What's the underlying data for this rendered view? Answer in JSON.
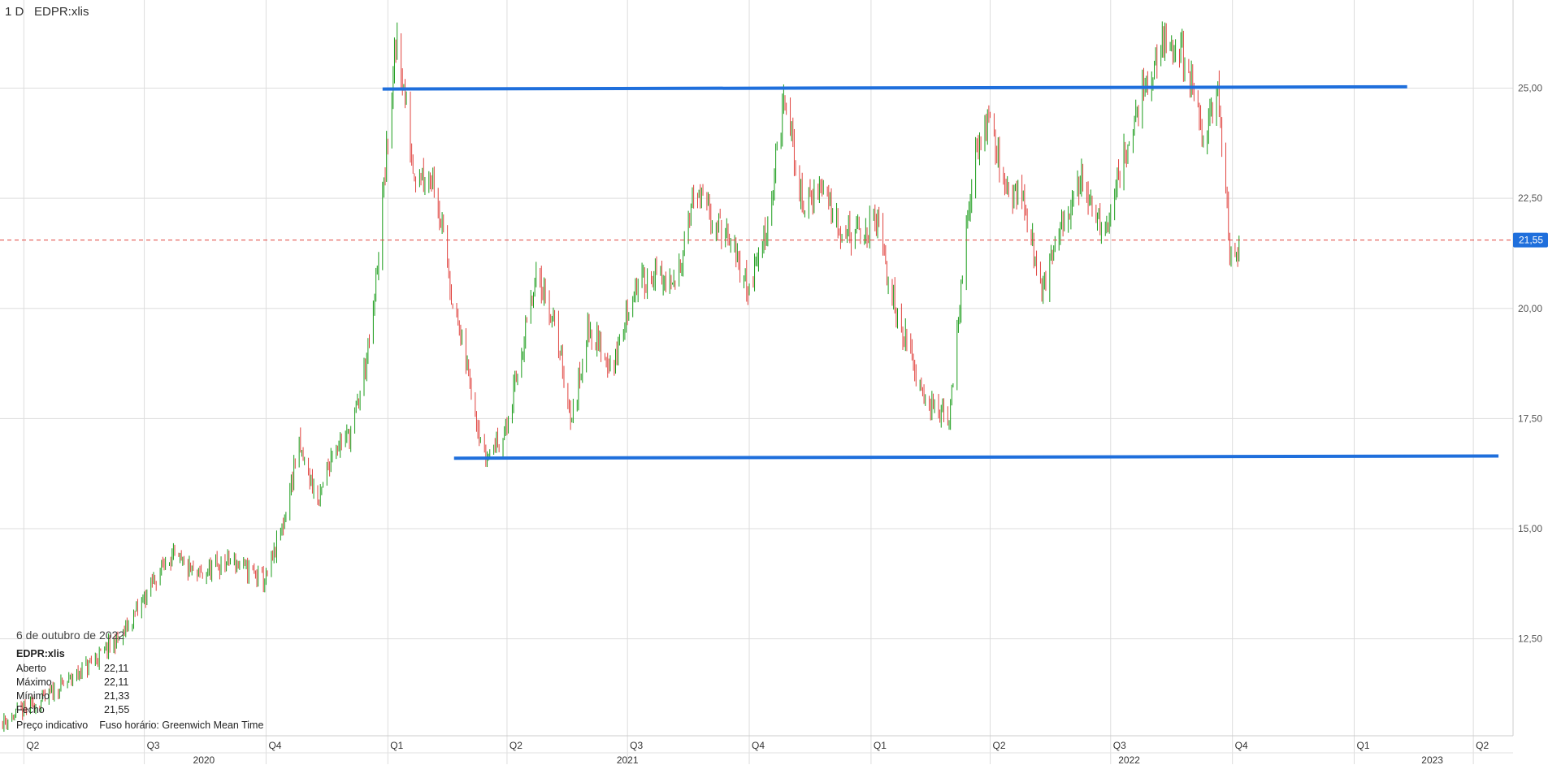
{
  "header": {
    "interval": "1 D",
    "symbol": "EDPR:xlis"
  },
  "current_price_label": "21,55",
  "info_panel": {
    "date": "6 de outubro de 2022",
    "symbol": "EDPR:xlis",
    "rows": [
      {
        "label": "Aberto",
        "value": "22,11"
      },
      {
        "label": "Máximo",
        "value": "22,11"
      },
      {
        "label": "Mínimo",
        "value": "21,33"
      },
      {
        "label": "Fecho",
        "value": "21,55"
      }
    ],
    "footer_left": "Preço indicativo",
    "footer_right": "Fuso horário: Greenwich Mean Time"
  },
  "colors": {
    "up": "#1a9c1a",
    "down": "#e0433f",
    "trendline": "#1f6fdc",
    "price_line": "#e0433f",
    "grid": "#dddddd"
  },
  "chart_data": {
    "type": "candlestick",
    "ylim": [
      10.3,
      27.0
    ],
    "y_ticks": [
      {
        "value": 12.5,
        "label": "12,50"
      },
      {
        "value": 15.0,
        "label": "15,00"
      },
      {
        "value": 17.5,
        "label": "17,50"
      },
      {
        "value": 20.0,
        "label": "20,00"
      },
      {
        "value": 22.5,
        "label": "22,50"
      },
      {
        "value": 25.0,
        "label": "25,00"
      }
    ],
    "x_quarter_ticks": [
      {
        "date": "2020-04-01",
        "label": "Q2"
      },
      {
        "date": "2020-07-01",
        "label": "Q3"
      },
      {
        "date": "2020-10-01",
        "label": "Q4"
      },
      {
        "date": "2021-01-01",
        "label": "Q1"
      },
      {
        "date": "2021-04-01",
        "label": "Q2"
      },
      {
        "date": "2021-07-01",
        "label": "Q3"
      },
      {
        "date": "2021-10-01",
        "label": "Q4"
      },
      {
        "date": "2022-01-01",
        "label": "Q1"
      },
      {
        "date": "2022-04-01",
        "label": "Q2"
      },
      {
        "date": "2022-07-01",
        "label": "Q3"
      },
      {
        "date": "2022-10-01",
        "label": "Q4"
      },
      {
        "date": "2023-01-01",
        "label": "Q1"
      },
      {
        "date": "2023-04-01",
        "label": "Q2"
      }
    ],
    "x_year_labels": [
      {
        "date": "2020-08-15",
        "label": "2020"
      },
      {
        "date": "2021-07-01",
        "label": "2021"
      },
      {
        "date": "2022-07-15",
        "label": "2022"
      },
      {
        "date": "2023-03-01",
        "label": "2023"
      }
    ],
    "last_price": 21.55,
    "trendlines": [
      {
        "from": [
          "2020-12-28",
          24.98
        ],
        "to": [
          "2023-02-10",
          25.03
        ]
      },
      {
        "from": [
          "2021-02-20",
          16.6
        ],
        "to": [
          "2023-04-20",
          16.65
        ]
      }
    ],
    "price_path": [
      [
        "2020-03-15",
        10.6
      ],
      [
        "2020-04-15",
        11.1
      ],
      [
        "2020-05-20",
        11.9
      ],
      [
        "2020-06-15",
        12.6
      ],
      [
        "2020-07-10",
        13.9
      ],
      [
        "2020-07-20",
        14.4
      ],
      [
        "2020-08-10",
        13.9
      ],
      [
        "2020-09-05",
        14.3
      ],
      [
        "2020-09-20",
        14.0
      ],
      [
        "2020-10-01",
        13.8
      ],
      [
        "2020-10-15",
        15.2
      ],
      [
        "2020-10-25",
        16.9
      ],
      [
        "2020-11-10",
        15.6
      ],
      [
        "2020-11-20",
        16.8
      ],
      [
        "2020-12-05",
        17.2
      ],
      [
        "2020-12-20",
        19.5
      ],
      [
        "2020-12-31",
        23.5
      ],
      [
        "2021-01-08",
        26.2
      ],
      [
        "2021-01-20",
        23.2
      ],
      [
        "2021-02-05",
        23.0
      ],
      [
        "2021-02-20",
        20.0
      ],
      [
        "2021-03-05",
        18.2
      ],
      [
        "2021-03-15",
        16.6
      ],
      [
        "2021-04-01",
        17.3
      ],
      [
        "2021-04-15",
        19.5
      ],
      [
        "2021-04-25",
        20.8
      ],
      [
        "2021-05-10",
        19.2
      ],
      [
        "2021-05-20",
        17.4
      ],
      [
        "2021-06-01",
        19.6
      ],
      [
        "2021-06-20",
        18.6
      ],
      [
        "2021-07-05",
        20.4
      ],
      [
        "2021-07-20",
        20.8
      ],
      [
        "2021-08-05",
        20.4
      ],
      [
        "2021-08-20",
        22.6
      ],
      [
        "2021-09-05",
        22.0
      ],
      [
        "2021-09-20",
        21.2
      ],
      [
        "2021-10-01",
        20.4
      ],
      [
        "2021-10-15",
        22.0
      ],
      [
        "2021-10-28",
        24.8
      ],
      [
        "2021-11-10",
        22.3
      ],
      [
        "2021-11-25",
        22.8
      ],
      [
        "2021-12-10",
        21.8
      ],
      [
        "2021-12-25",
        21.6
      ],
      [
        "2022-01-05",
        22.0
      ],
      [
        "2022-01-15",
        20.5
      ],
      [
        "2022-02-01",
        18.8
      ],
      [
        "2022-02-15",
        17.8
      ],
      [
        "2022-03-01",
        17.4
      ],
      [
        "2022-03-10",
        20.5
      ],
      [
        "2022-03-20",
        23.4
      ],
      [
        "2022-04-01",
        24.6
      ],
      [
        "2022-04-10",
        22.8
      ],
      [
        "2022-04-25",
        22.6
      ],
      [
        "2022-05-10",
        20.4
      ],
      [
        "2022-05-25",
        21.8
      ],
      [
        "2022-06-10",
        23.0
      ],
      [
        "2022-06-25",
        21.6
      ],
      [
        "2022-07-10",
        23.4
      ],
      [
        "2022-07-25",
        24.8
      ],
      [
        "2022-08-10",
        26.0
      ],
      [
        "2022-08-25",
        25.8
      ],
      [
        "2022-09-10",
        23.8
      ],
      [
        "2022-09-20",
        25.0
      ],
      [
        "2022-09-30",
        21.0
      ],
      [
        "2022-10-06",
        21.55
      ]
    ]
  }
}
